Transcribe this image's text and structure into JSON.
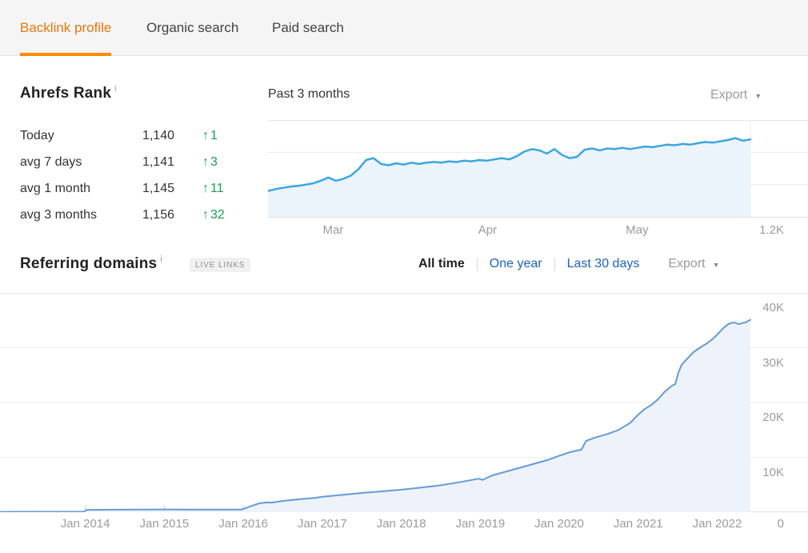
{
  "icons": {
    "caret": "▼",
    "up_arrow": "↑",
    "info": "i"
  },
  "colors": {
    "accent_orange": "#ff8b00",
    "orange_text": "#e9760e",
    "link_blue": "#1a63c1",
    "green_up": "#12a14f",
    "rank_line": "#3ba6e0",
    "rank_fill": "#ecf4fb",
    "ref_line": "#639bd8",
    "ref_fill": "#eef2fa"
  },
  "tabs": {
    "items": [
      {
        "label": "Backlink profile",
        "active": true
      },
      {
        "label": "Organic search",
        "active": false
      },
      {
        "label": "Paid search",
        "active": false
      }
    ]
  },
  "ahrefs_rank": {
    "title": "Ahrefs Rank",
    "info_icon": "i",
    "rows": [
      {
        "label": "Today",
        "value": "1,140",
        "delta": "1"
      },
      {
        "label": "avg 7 days",
        "value": "1,141",
        "delta": "3"
      },
      {
        "label": "avg 1 month",
        "value": "1,145",
        "delta": "11"
      },
      {
        "label": "avg 3 months",
        "value": "1,156",
        "delta": "32"
      }
    ]
  },
  "rank_chart": {
    "title": "Past 3 months",
    "export_label": "Export"
  },
  "referring": {
    "title": "Referring domains",
    "info_icon": "i",
    "badge": "LIVE LINKS",
    "filters": [
      {
        "label": "All time",
        "active": true
      },
      {
        "label": "One year",
        "active": false
      },
      {
        "label": "Last 30 days",
        "active": false
      }
    ],
    "export_label": "Export"
  },
  "chart_data": [
    {
      "type": "area",
      "title": "Past 3 months",
      "name": "Ahrefs Rank trend",
      "legend": "none",
      "grid": "horizontal",
      "y_axis": {
        "min": 1125,
        "max": 1200,
        "inverted_rank_axis": true,
        "gridlines": [
          1150,
          1175
        ],
        "bottom_label": "1.2K"
      },
      "xticks": [
        {
          "label": "Mar",
          "pos": 0.135
        },
        {
          "label": "Apr",
          "pos": 0.455
        },
        {
          "label": "May",
          "pos": 0.765
        }
      ],
      "series": [
        {
          "name": "rank",
          "values": [
            1180,
            1178.5,
            1177.5,
            1176.5,
            1176,
            1175,
            1174,
            1172,
            1169.5,
            1172,
            1170.5,
            1168,
            1163,
            1156,
            1154.5,
            1159,
            1160,
            1158.5,
            1159.5,
            1158,
            1159,
            1158,
            1157.5,
            1158,
            1157,
            1157.5,
            1156.5,
            1157,
            1156,
            1156.5,
            1155.5,
            1154.5,
            1155.5,
            1153,
            1149.5,
            1147.5,
            1148.5,
            1151,
            1147.5,
            1152,
            1154.5,
            1153.5,
            1148,
            1147,
            1148.5,
            1147,
            1147.5,
            1146.5,
            1147.5,
            1146.5,
            1145.5,
            1146,
            1145,
            1144,
            1144.5,
            1143.5,
            1144,
            1143,
            1142,
            1142.5,
            1141.5,
            1140.5,
            1139,
            1141,
            1140
          ]
        }
      ]
    },
    {
      "type": "area",
      "title": "Referring domains (All time)",
      "name": "Referring domains trend",
      "legend": "none",
      "grid": "horizontal",
      "x_domain": [
        2012.92,
        2022.42
      ],
      "y_axis": {
        "min": 0,
        "max": 40000,
        "ticks": [
          {
            "label": "40K",
            "value": 40000
          },
          {
            "label": "30K",
            "value": 30000
          },
          {
            "label": "20K",
            "value": 20000
          },
          {
            "label": "10K",
            "value": 10000
          },
          {
            "label": "0",
            "value": 0
          }
        ]
      },
      "xticks": [
        {
          "label": "Jan 2014",
          "year": 2014
        },
        {
          "label": "Jan 2015",
          "year": 2015
        },
        {
          "label": "Jan 2016",
          "year": 2016
        },
        {
          "label": "Jan 2017",
          "year": 2017
        },
        {
          "label": "Jan 2018",
          "year": 2018
        },
        {
          "label": "Jan 2019",
          "year": 2019
        },
        {
          "label": "Jan 2020",
          "year": 2020
        },
        {
          "label": "Jan 2021",
          "year": 2021
        },
        {
          "label": "Jan 2022",
          "year": 2022
        }
      ],
      "series": [
        {
          "name": "referring domains",
          "points": [
            [
              2012.92,
              60
            ],
            [
              2013.2,
              70
            ],
            [
              2013.6,
              80
            ],
            [
              2013.98,
              90
            ],
            [
              2014.02,
              420
            ],
            [
              2014.3,
              450
            ],
            [
              2014.6,
              470
            ],
            [
              2014.9,
              490
            ],
            [
              2015.05,
              500
            ],
            [
              2015.3,
              480
            ],
            [
              2015.7,
              470
            ],
            [
              2015.98,
              480
            ],
            [
              2016.08,
              1000
            ],
            [
              2016.2,
              1600
            ],
            [
              2016.3,
              1800
            ],
            [
              2016.36,
              1750
            ],
            [
              2016.5,
              2050
            ],
            [
              2016.7,
              2350
            ],
            [
              2016.9,
              2600
            ],
            [
              2017.0,
              2800
            ],
            [
              2017.25,
              3150
            ],
            [
              2017.5,
              3500
            ],
            [
              2017.75,
              3800
            ],
            [
              2018.0,
              4100
            ],
            [
              2018.25,
              4500
            ],
            [
              2018.5,
              4900
            ],
            [
              2018.75,
              5500
            ],
            [
              2018.98,
              6100
            ],
            [
              2019.03,
              5900
            ],
            [
              2019.15,
              6700
            ],
            [
              2019.3,
              7300
            ],
            [
              2019.5,
              8100
            ],
            [
              2019.7,
              8900
            ],
            [
              2019.85,
              9500
            ],
            [
              2020.0,
              10300
            ],
            [
              2020.15,
              11000
            ],
            [
              2020.28,
              11400
            ],
            [
              2020.34,
              13000
            ],
            [
              2020.45,
              13600
            ],
            [
              2020.6,
              14200
            ],
            [
              2020.75,
              15000
            ],
            [
              2020.9,
              16300
            ],
            [
              2021.0,
              17800
            ],
            [
              2021.08,
              18800
            ],
            [
              2021.17,
              19600
            ],
            [
              2021.25,
              20600
            ],
            [
              2021.33,
              21900
            ],
            [
              2021.42,
              23000
            ],
            [
              2021.47,
              23400
            ],
            [
              2021.51,
              25500
            ],
            [
              2021.55,
              26900
            ],
            [
              2021.62,
              28000
            ],
            [
              2021.7,
              29200
            ],
            [
              2021.78,
              30000
            ],
            [
              2021.87,
              30800
            ],
            [
              2021.95,
              31700
            ],
            [
              2022.0,
              32400
            ],
            [
              2022.08,
              33600
            ],
            [
              2022.13,
              34200
            ],
            [
              2022.17,
              34500
            ],
            [
              2022.22,
              34600
            ],
            [
              2022.27,
              34300
            ],
            [
              2022.32,
              34500
            ],
            [
              2022.37,
              34700
            ],
            [
              2022.42,
              35100
            ]
          ]
        }
      ]
    }
  ]
}
